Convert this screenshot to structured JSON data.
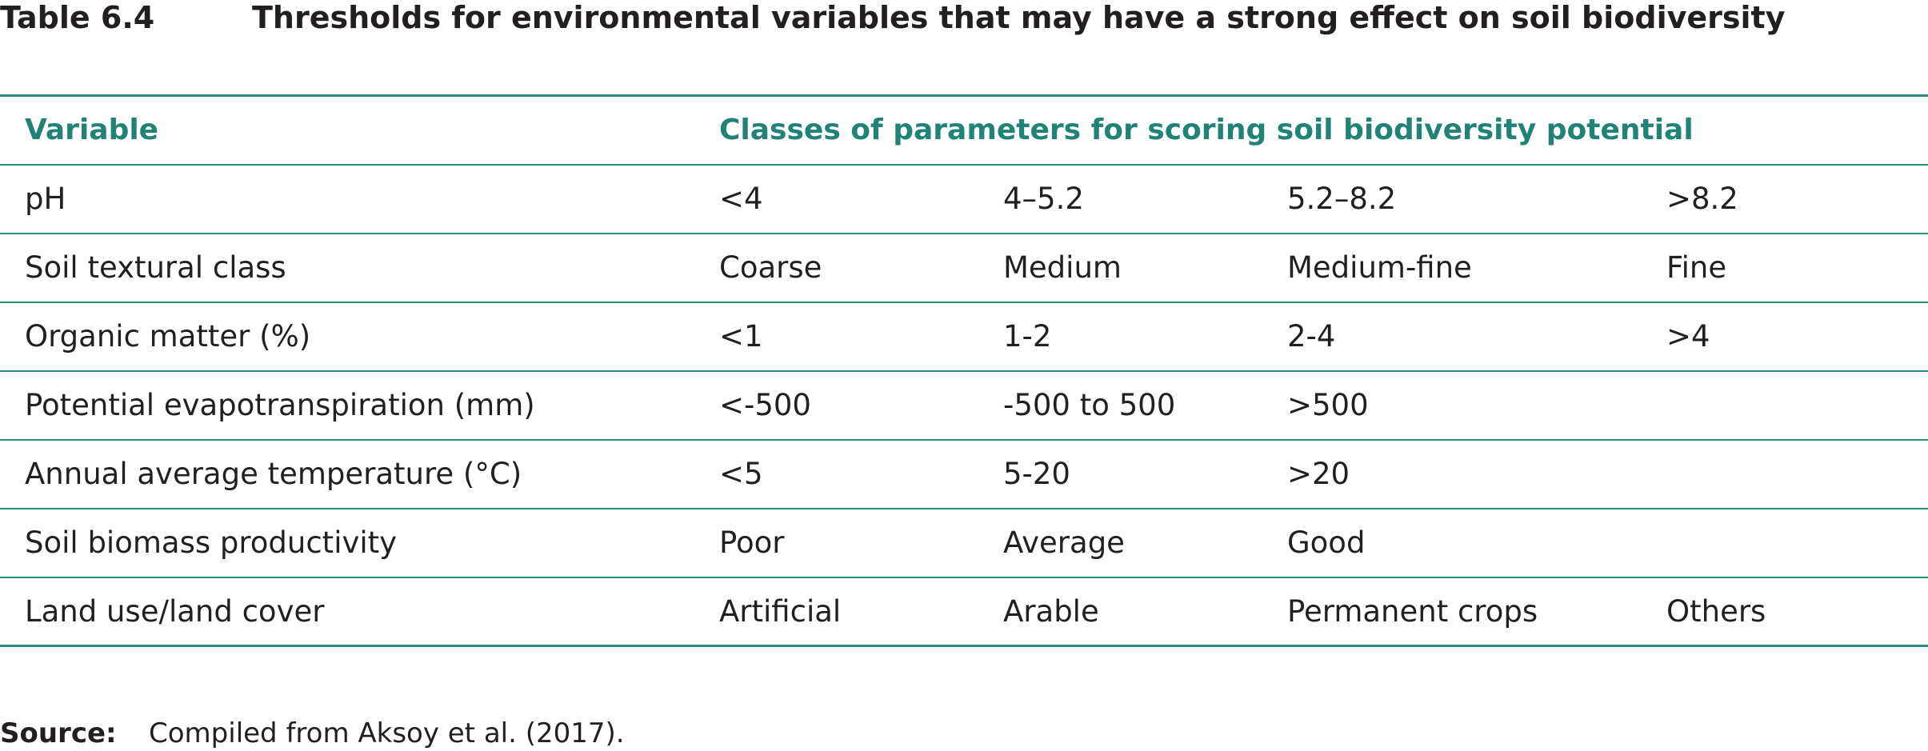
{
  "title": {
    "number": "Table 6.4",
    "text": "Thresholds for environmental variables that may have a strong effect on soil biodiversity"
  },
  "table": {
    "headers": {
      "variable": "Variable",
      "classes": "Classes of parameters for scoring soil biodiversity potential"
    },
    "rows": [
      {
        "variable": "pH",
        "classes": [
          "<4",
          "4–5.2",
          "5.2–8.2",
          ">8.2"
        ]
      },
      {
        "variable": "Soil textural class",
        "classes": [
          "Coarse",
          "Medium",
          "Medium-fine",
          "Fine"
        ]
      },
      {
        "variable": "Organic matter (%)",
        "classes": [
          "<1",
          "1-2",
          "2-4",
          ">4"
        ]
      },
      {
        "variable": "Potential evapotranspiration (mm)",
        "classes": [
          "<-500",
          "-500 to 500",
          ">500",
          ""
        ]
      },
      {
        "variable": "Annual average temperature (°C)",
        "classes": [
          "<5",
          "5-20",
          ">20",
          ""
        ]
      },
      {
        "variable": "Soil biomass productivity",
        "classes": [
          "Poor",
          "Average",
          "Good",
          ""
        ]
      },
      {
        "variable": "Land use/land cover",
        "classes": [
          "Artificial",
          "Arable",
          "Permanent crops",
          "Others"
        ]
      }
    ]
  },
  "source": {
    "label": "Source:",
    "text": "Compiled from Aksoy et al. (2017)."
  },
  "colors": {
    "accent": "#218276",
    "rule": "#2b8c82",
    "text": "#231f20"
  }
}
